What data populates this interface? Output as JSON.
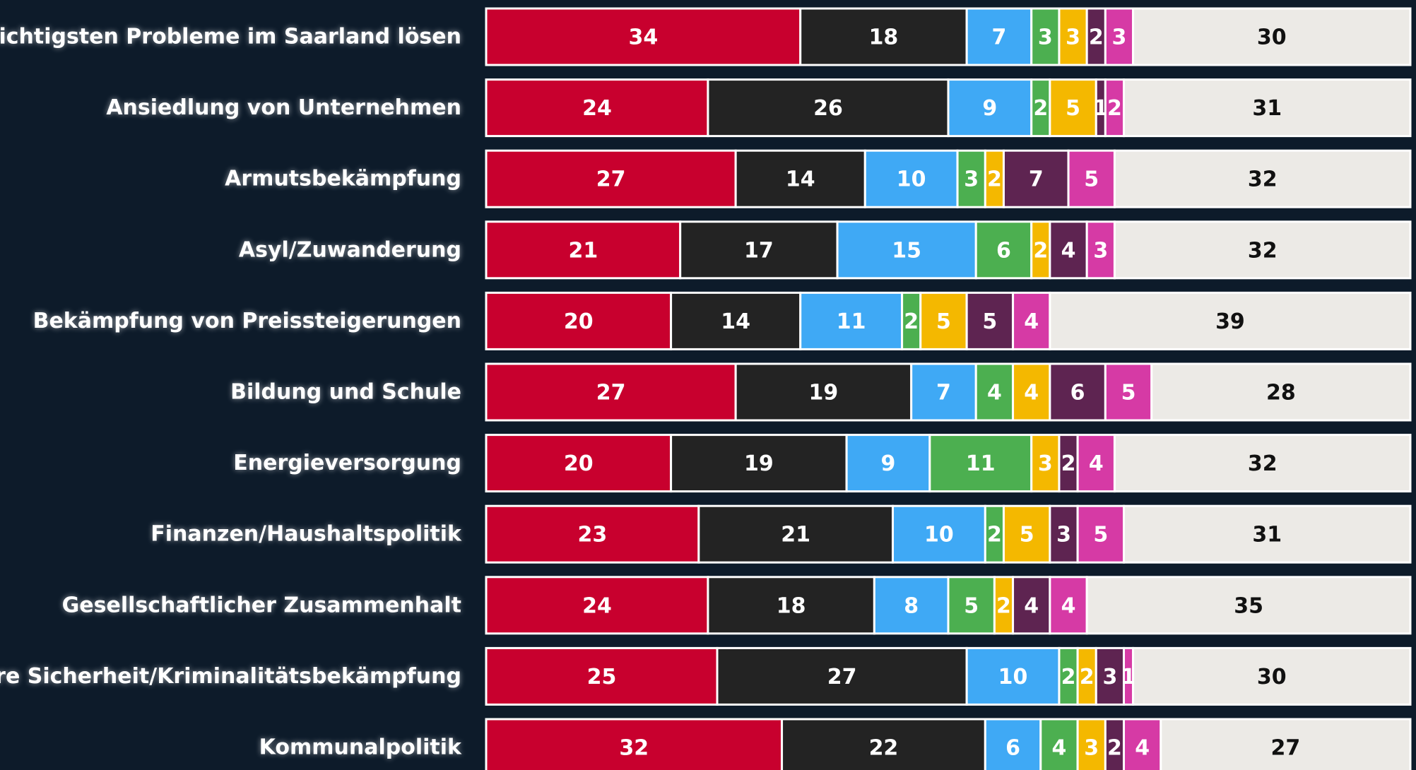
{
  "chart_data": {
    "type": "stacked-bar",
    "categories": [
      "Die wichtigsten Probleme im Saarland lösen",
      "Ansiedlung von Unternehmen",
      "Armutsbekämpfung",
      "Asyl/Zuwanderung",
      "Bekämpfung von Preissteigerungen",
      "Bildung und Schule",
      "Energieversorgung",
      "Finanzen/Haushaltspolitik",
      "Gesellschaftlicher Zusammenhalt",
      "Innere Sicherheit/Kriminalitätsbekämpfung",
      "Kommunalpolitik"
    ],
    "xlim": [
      0,
      100
    ],
    "series": [
      {
        "color": "#c8002e",
        "values": [
          34,
          24,
          27,
          21,
          20,
          27,
          20,
          23,
          24,
          25,
          32
        ]
      },
      {
        "color": "#232323",
        "values": [
          18,
          26,
          14,
          17,
          14,
          19,
          19,
          21,
          18,
          27,
          22
        ]
      },
      {
        "color": "#3fa9f5",
        "values": [
          7,
          9,
          10,
          15,
          11,
          7,
          9,
          10,
          8,
          10,
          6
        ]
      },
      {
        "color": "#4caf50",
        "values": [
          3,
          2,
          3,
          6,
          2,
          4,
          11,
          2,
          5,
          2,
          4
        ]
      },
      {
        "color": "#f4b800",
        "values": [
          3,
          5,
          2,
          2,
          5,
          4,
          3,
          5,
          2,
          2,
          3
        ]
      },
      {
        "color": "#5e2451",
        "values": [
          2,
          1,
          7,
          4,
          5,
          6,
          2,
          3,
          4,
          3,
          2
        ]
      },
      {
        "color": "#d63aa5",
        "values": [
          3,
          2,
          5,
          3,
          4,
          5,
          4,
          5,
          4,
          1,
          4
        ]
      },
      {
        "color": "#eceae6",
        "values": [
          30,
          31,
          32,
          32,
          39,
          28,
          32,
          31,
          35,
          30,
          27
        ]
      }
    ]
  }
}
